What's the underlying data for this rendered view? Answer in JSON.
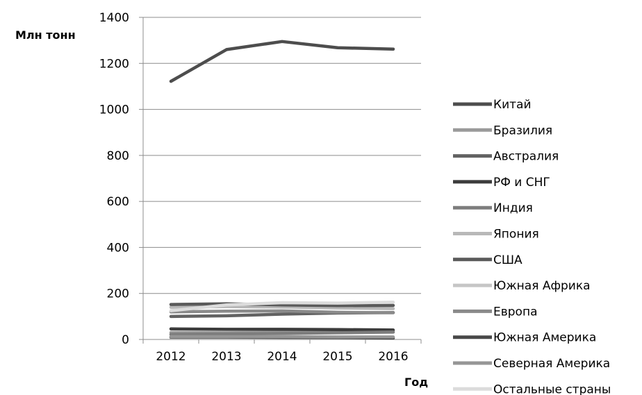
{
  "chart_data": {
    "type": "line",
    "ylabel": "Млн тонн",
    "xlabel": "Год",
    "categories": [
      "2012",
      "2013",
      "2014",
      "2015",
      "2016"
    ],
    "ylim": [
      0,
      1400
    ],
    "yticks": [
      0,
      200,
      400,
      600,
      800,
      1000,
      1200,
      1400
    ],
    "grid": "horizontal",
    "legend_position": "right",
    "series": [
      {
        "name": "Китай",
        "color": "#4d4d4d",
        "values": [
          1122,
          1260,
          1295,
          1268,
          1262
        ]
      },
      {
        "name": "Бразилия",
        "color": "#9a9a9a",
        "values": [
          30,
          29,
          31,
          33,
          32
        ]
      },
      {
        "name": "Австралия",
        "color": "#626262",
        "values": [
          100,
          103,
          110,
          115,
          117
        ]
      },
      {
        "name": "РФ и СНГ",
        "color": "#3c3c3c",
        "values": [
          46,
          44,
          44,
          43,
          41
        ]
      },
      {
        "name": "Индия",
        "color": "#7d7d7d",
        "values": [
          22,
          24,
          26,
          29,
          32
        ]
      },
      {
        "name": "Япония",
        "color": "#b8b8b8",
        "values": [
          140,
          143,
          141,
          137,
          134
        ]
      },
      {
        "name": "США",
        "color": "#5a5a5a",
        "values": [
          152,
          155,
          150,
          147,
          148
        ]
      },
      {
        "name": "Южная Африка",
        "color": "#c6c6c6",
        "values": [
          7,
          7,
          7,
          6,
          6
        ]
      },
      {
        "name": "Европа",
        "color": "#8a8a8a",
        "values": [
          120,
          123,
          124,
          118,
          116
        ]
      },
      {
        "name": "Южная Америка",
        "color": "#484848",
        "values": [
          10,
          10,
          9,
          8,
          6
        ]
      },
      {
        "name": "Северная Америка",
        "color": "#969696",
        "values": [
          12,
          12,
          12,
          11,
          11
        ]
      },
      {
        "name": "Остальные страны",
        "color": "#dcdcdc",
        "values": [
          125,
          150,
          160,
          158,
          162
        ]
      }
    ]
  }
}
